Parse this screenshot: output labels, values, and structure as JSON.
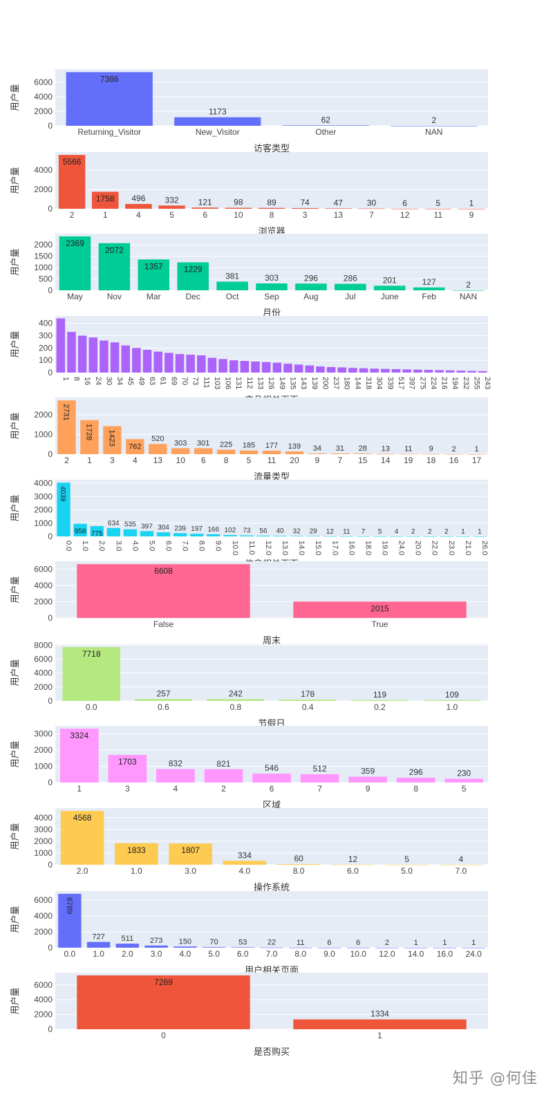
{
  "watermark": "知乎 @何佳",
  "chart_data": [
    {
      "type": "bar",
      "xlabel": "访客类型",
      "ylabel": "用户量",
      "ylim": [
        0,
        7800
      ],
      "yticks": [
        0,
        2000,
        4000,
        6000
      ],
      "color": "#636efa",
      "categories": [
        "Returning_Visitor",
        "New_Visitor",
        "Other",
        "NAN"
      ],
      "values": [
        7386,
        1173,
        62,
        2
      ],
      "labels": [
        "7386",
        "1173",
        "62",
        "2"
      ],
      "label_inside": [
        true,
        false,
        false,
        false
      ]
    },
    {
      "type": "bar",
      "xlabel": "浏览器",
      "ylabel": "用户量",
      "ylim": [
        0,
        5860
      ],
      "yticks": [
        0,
        2000,
        4000
      ],
      "color": "#ef553b",
      "categories": [
        "2",
        "1",
        "4",
        "5",
        "6",
        "10",
        "8",
        "3",
        "13",
        "7",
        "12",
        "11",
        "9"
      ],
      "values": [
        5566,
        1758,
        496,
        332,
        121,
        98,
        89,
        74,
        47,
        30,
        6,
        5,
        1
      ],
      "labels": [
        "5566",
        "1758",
        "496",
        "332",
        "121",
        "98",
        "89",
        "74",
        "47",
        "30",
        "6",
        "5",
        "1"
      ],
      "label_inside": [
        true,
        true,
        false,
        false,
        false,
        false,
        false,
        false,
        false,
        false,
        false,
        false,
        false
      ]
    },
    {
      "type": "bar",
      "xlabel": "月份",
      "ylabel": "用户量",
      "ylim": [
        0,
        2490
      ],
      "yticks": [
        0,
        500,
        1000,
        1500,
        2000
      ],
      "color": "#00cc96",
      "categories": [
        "May",
        "Nov",
        "Mar",
        "Dec",
        "Oct",
        "Sep",
        "Aug",
        "Jul",
        "June",
        "Feb",
        "NAN"
      ],
      "values": [
        2369,
        2072,
        1357,
        1229,
        381,
        303,
        296,
        286,
        201,
        127,
        2
      ],
      "labels": [
        "2369",
        "2072",
        "1357",
        "1229",
        "381",
        "303",
        "296",
        "286",
        "201",
        "127",
        "2"
      ],
      "label_inside": [
        true,
        true,
        true,
        true,
        false,
        false,
        false,
        false,
        false,
        false,
        false
      ]
    },
    {
      "type": "bar",
      "xlabel": "产品相关页面",
      "ylabel": "用户量",
      "ylim": [
        0,
        460
      ],
      "yticks": [
        0,
        100,
        200,
        300,
        400
      ],
      "color": "#ab63fa",
      "categories": [
        "1",
        "8",
        "16",
        "24",
        "30",
        "34",
        "45",
        "49",
        "63",
        "61",
        "69",
        "70",
        "73",
        "111",
        "103",
        "106",
        "131",
        "112",
        "133",
        "126",
        "149",
        "135",
        "143",
        "139",
        "200",
        "237",
        "180",
        "144",
        "318",
        "304",
        "339",
        "517",
        "397",
        "275",
        "224",
        "216",
        "194",
        "232",
        "255",
        "243"
      ],
      "values": [
        440,
        330,
        300,
        285,
        260,
        245,
        220,
        200,
        185,
        170,
        160,
        150,
        145,
        140,
        120,
        110,
        100,
        95,
        90,
        85,
        80,
        72,
        65,
        58,
        50,
        45,
        42,
        38,
        35,
        32,
        30,
        28,
        26,
        24,
        22,
        20,
        18,
        16,
        14,
        12
      ],
      "labels": [],
      "label_inside": [],
      "rotate_ticks": true
    },
    {
      "type": "bar",
      "xlabel": "流量类型",
      "ylabel": "用户量",
      "ylim": [
        0,
        2880
      ],
      "yticks": [
        0,
        1000,
        2000
      ],
      "color": "#ffa15a",
      "categories": [
        "2",
        "1",
        "3",
        "4",
        "13",
        "10",
        "6",
        "8",
        "5",
        "11",
        "20",
        "9",
        "7",
        "15",
        "14",
        "19",
        "18",
        "16",
        "17"
      ],
      "values": [
        2731,
        1728,
        1423,
        762,
        520,
        303,
        301,
        225,
        185,
        177,
        139,
        34,
        31,
        28,
        13,
        11,
        9,
        2,
        1
      ],
      "labels": [
        "2731",
        "1728",
        "1423",
        "762",
        "520",
        "303",
        "301",
        "225",
        "185",
        "177",
        "139",
        "34",
        "31",
        "28",
        "13",
        "11",
        "9",
        "2",
        "1"
      ],
      "label_inside": [
        true,
        true,
        true,
        true,
        false,
        false,
        false,
        false,
        false,
        false,
        false,
        false,
        false,
        false,
        false,
        false,
        false,
        false,
        false
      ],
      "label_rotate": [
        true,
        true,
        true,
        false,
        false,
        false,
        false,
        false,
        false,
        false,
        false,
        false,
        false,
        false,
        false,
        false,
        false,
        false,
        false
      ]
    },
    {
      "type": "bar",
      "xlabel": "信息相关页面",
      "ylabel": "用户量",
      "ylim": [
        0,
        4260
      ],
      "yticks": [
        0,
        1000,
        2000,
        3000,
        4000
      ],
      "color": "#19d3f3",
      "categories": [
        "0.0",
        "1.0",
        "2.0",
        "3.0",
        "4.0",
        "5.0",
        "6.0",
        "7.0",
        "8.0",
        "9.0",
        "10.0",
        "11.0",
        "12.0",
        "13.0",
        "14.0",
        "15.0",
        "17.0",
        "16.0",
        "18.0",
        "19.0",
        "24.0",
        "20.0",
        "22.0",
        "23.0",
        "21.0",
        "26.0"
      ],
      "values": [
        4039,
        958,
        775,
        634,
        535,
        397,
        304,
        239,
        197,
        166,
        102,
        73,
        56,
        40,
        32,
        29,
        12,
        11,
        7,
        5,
        4,
        2,
        2,
        2,
        1,
        1
      ],
      "labels": [
        "4039",
        "958",
        "775",
        "634",
        "535",
        "397",
        "304",
        "239",
        "197",
        "166",
        "102",
        "73",
        "56",
        "40",
        "32",
        "29",
        "12",
        "11",
        "7",
        "5",
        "4",
        "2",
        "2",
        "2",
        "1",
        "1"
      ],
      "label_inside": [
        true,
        true,
        true,
        false,
        false,
        false,
        false,
        false,
        false,
        false,
        false,
        false,
        false,
        false,
        false,
        false,
        false,
        false,
        false,
        false,
        false,
        false,
        false,
        false,
        false,
        false
      ],
      "label_rotate": [
        true,
        false,
        false,
        false,
        false,
        false,
        false,
        false,
        false,
        false,
        false,
        false,
        false,
        false,
        false,
        false,
        false,
        false,
        false,
        false,
        false,
        false,
        false,
        false,
        false,
        false
      ],
      "rotate_ticks": true
    },
    {
      "type": "bar",
      "xlabel": "周末",
      "ylabel": "用户量",
      "ylim": [
        0,
        6960
      ],
      "yticks": [
        0,
        2000,
        4000,
        6000
      ],
      "color": "#ff6692",
      "wide": true,
      "categories": [
        "False",
        "True"
      ],
      "values": [
        6608,
        2015
      ],
      "labels": [
        "6608",
        "2015"
      ],
      "label_inside": [
        true,
        true
      ]
    },
    {
      "type": "bar",
      "xlabel": "节假日",
      "ylabel": "用户量",
      "ylim": [
        0,
        8130
      ],
      "yticks": [
        0,
        2000,
        4000,
        6000,
        8000
      ],
      "color": "#b6e880",
      "categories": [
        "0.0",
        "0.6",
        "0.8",
        "0.4",
        "0.2",
        "1.0"
      ],
      "values": [
        7718,
        257,
        242,
        178,
        119,
        109
      ],
      "labels": [
        "7718",
        "257",
        "242",
        "178",
        "119",
        "109"
      ],
      "label_inside": [
        true,
        false,
        false,
        false,
        false,
        false
      ]
    },
    {
      "type": "bar",
      "xlabel": "区域",
      "ylabel": "用户量",
      "ylim": [
        0,
        3500
      ],
      "yticks": [
        0,
        1000,
        2000,
        3000
      ],
      "color": "#ff97ff",
      "categories": [
        "1",
        "3",
        "4",
        "2",
        "6",
        "7",
        "9",
        "8",
        "5"
      ],
      "values": [
        3324,
        1703,
        832,
        821,
        546,
        512,
        359,
        296,
        230
      ],
      "labels": [
        "3324",
        "1703",
        "832",
        "821",
        "546",
        "512",
        "359",
        "296",
        "230"
      ],
      "label_inside": [
        true,
        true,
        false,
        false,
        false,
        false,
        false,
        false,
        false
      ]
    },
    {
      "type": "bar",
      "xlabel": "操作系统",
      "ylabel": "用户量",
      "ylim": [
        0,
        4810
      ],
      "yticks": [
        0,
        1000,
        2000,
        3000,
        4000
      ],
      "color": "#fecb52",
      "categories": [
        "2.0",
        "1.0",
        "3.0",
        "4.0",
        "8.0",
        "6.0",
        "5.0",
        "7.0"
      ],
      "values": [
        4568,
        1833,
        1807,
        334,
        60,
        12,
        5,
        4
      ],
      "labels": [
        "4568",
        "1833",
        "1807",
        "334",
        "60",
        "12",
        "5",
        "4"
      ],
      "label_inside": [
        true,
        true,
        true,
        false,
        false,
        false,
        false,
        false
      ]
    },
    {
      "type": "bar",
      "xlabel": "用户相关页面",
      "ylabel": "用户量",
      "ylim": [
        0,
        7140
      ],
      "yticks": [
        0,
        2000,
        4000,
        6000
      ],
      "color": "#636efa",
      "categories": [
        "0.0",
        "1.0",
        "2.0",
        "3.0",
        "4.0",
        "5.0",
        "6.0",
        "7.0",
        "8.0",
        "9.0",
        "10.0",
        "12.0",
        "14.0",
        "16.0",
        "24.0"
      ],
      "values": [
        6789,
        727,
        511,
        273,
        150,
        70,
        53,
        22,
        11,
        6,
        6,
        2,
        1,
        1,
        1
      ],
      "labels": [
        "6789",
        "727",
        "511",
        "273",
        "150",
        "70",
        "53",
        "22",
        "11",
        "6",
        "6",
        "2",
        "1",
        "1",
        "1"
      ],
      "label_inside": [
        true,
        false,
        false,
        false,
        false,
        false,
        false,
        false,
        false,
        false,
        false,
        false,
        false,
        false,
        false
      ],
      "label_rotate": [
        true,
        false,
        false,
        false,
        false,
        false,
        false,
        false,
        false,
        false,
        false,
        false,
        false,
        false,
        false
      ]
    },
    {
      "type": "bar",
      "xlabel": "是否购买",
      "ylabel": "用户量",
      "ylim": [
        0,
        7670
      ],
      "yticks": [
        0,
        2000,
        4000,
        6000
      ],
      "color": "#ef553b",
      "wide": true,
      "categories": [
        "0",
        "1"
      ],
      "values": [
        7289,
        1334
      ],
      "labels": [
        "7289",
        "1334"
      ],
      "label_inside": [
        true,
        false
      ]
    }
  ]
}
